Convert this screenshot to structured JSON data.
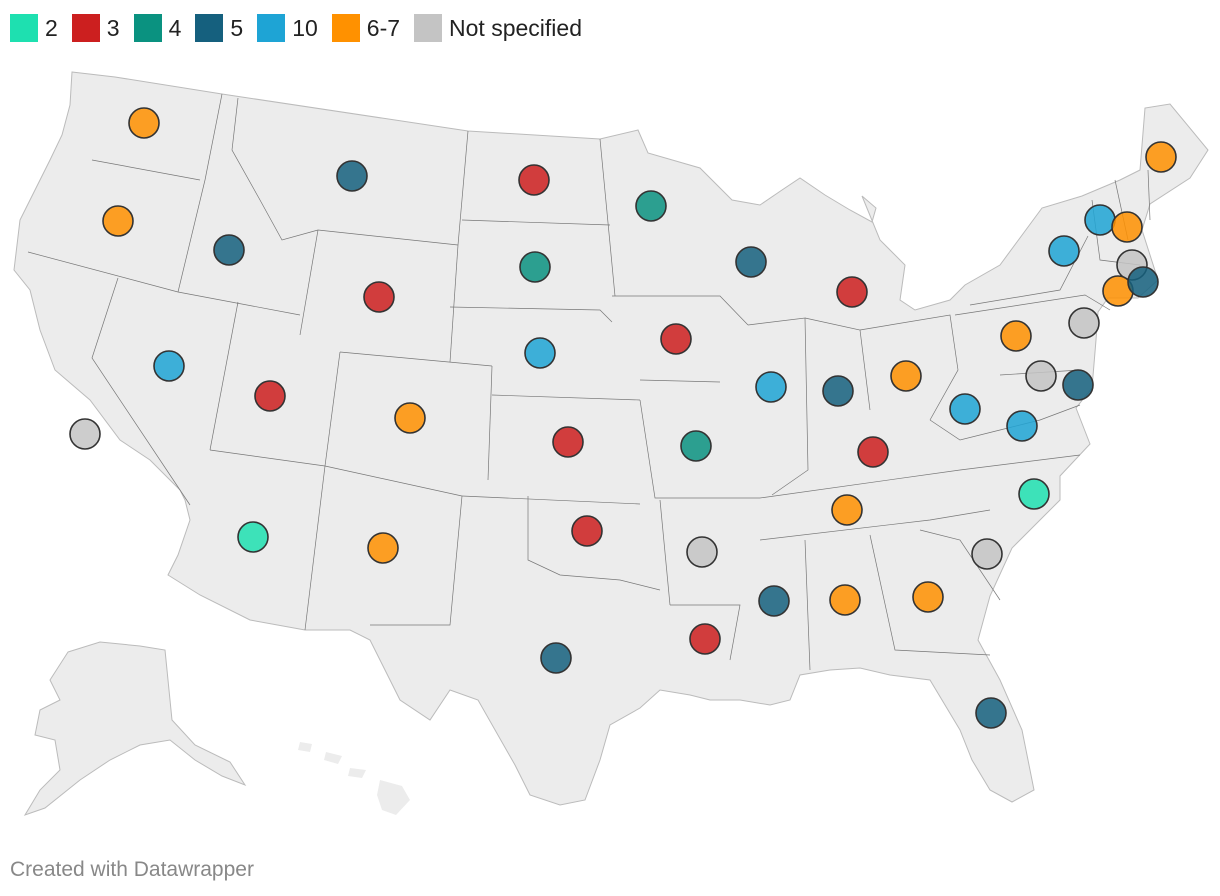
{
  "legend": [
    {
      "label": "2",
      "color": "#1ee0b0"
    },
    {
      "label": "3",
      "color": "#cc1f1f"
    },
    {
      "label": "4",
      "color": "#0a9280"
    },
    {
      "label": "5",
      "color": "#15607e"
    },
    {
      "label": "10",
      "color": "#1ea4d5"
    },
    {
      "label": "6-7",
      "color": "#ff9100"
    },
    {
      "label": "Not specified",
      "color": "#c4c4c4"
    }
  ],
  "map": {
    "land_color": "#ececec",
    "border_color": "#777777",
    "markers": [
      {
        "state": "Washington",
        "category": "6-7"
      },
      {
        "state": "Oregon",
        "category": "6-7"
      },
      {
        "state": "California",
        "category": "Not specified"
      },
      {
        "state": "Idaho",
        "category": "5"
      },
      {
        "state": "Nevada",
        "category": "10"
      },
      {
        "state": "Montana",
        "category": "5"
      },
      {
        "state": "Wyoming",
        "category": "3"
      },
      {
        "state": "Utah",
        "category": "3"
      },
      {
        "state": "Arizona",
        "category": "2"
      },
      {
        "state": "Colorado",
        "category": "6-7"
      },
      {
        "state": "New Mexico",
        "category": "6-7"
      },
      {
        "state": "North Dakota",
        "category": "3"
      },
      {
        "state": "South Dakota",
        "category": "4"
      },
      {
        "state": "Nebraska",
        "category": "10"
      },
      {
        "state": "Kansas",
        "category": "3"
      },
      {
        "state": "Oklahoma",
        "category": "3"
      },
      {
        "state": "Texas",
        "category": "5"
      },
      {
        "state": "Minnesota",
        "category": "4"
      },
      {
        "state": "Iowa",
        "category": "3"
      },
      {
        "state": "Missouri",
        "category": "4"
      },
      {
        "state": "Arkansas",
        "category": "Not specified"
      },
      {
        "state": "Louisiana",
        "category": "3"
      },
      {
        "state": "Wisconsin",
        "category": "5"
      },
      {
        "state": "Illinois",
        "category": "10"
      },
      {
        "state": "Michigan",
        "category": "3"
      },
      {
        "state": "Indiana",
        "category": "5"
      },
      {
        "state": "Ohio",
        "category": "6-7"
      },
      {
        "state": "Kentucky",
        "category": "3"
      },
      {
        "state": "Tennessee",
        "category": "6-7"
      },
      {
        "state": "Mississippi",
        "category": "5"
      },
      {
        "state": "Alabama",
        "category": "6-7"
      },
      {
        "state": "Georgia",
        "category": "6-7"
      },
      {
        "state": "Florida",
        "category": "5"
      },
      {
        "state": "South Carolina",
        "category": "Not specified"
      },
      {
        "state": "North Carolina",
        "category": "2"
      },
      {
        "state": "Virginia",
        "category": "10"
      },
      {
        "state": "West Virginia",
        "category": "10"
      },
      {
        "state": "Pennsylvania",
        "category": "6-7"
      },
      {
        "state": "Maryland",
        "category": "Not specified"
      },
      {
        "state": "Delaware",
        "category": "5"
      },
      {
        "state": "New Jersey",
        "category": "Not specified"
      },
      {
        "state": "New York",
        "category": "10"
      },
      {
        "state": "Vermont",
        "category": "10"
      },
      {
        "state": "New Hampshire",
        "category": "6-7"
      },
      {
        "state": "Massachusetts",
        "category": "Not specified"
      },
      {
        "state": "Connecticut",
        "category": "6-7"
      },
      {
        "state": "Rhode Island",
        "category": "5"
      },
      {
        "state": "Maine",
        "category": "6-7"
      }
    ]
  },
  "footer": "Created with Datawrapper"
}
